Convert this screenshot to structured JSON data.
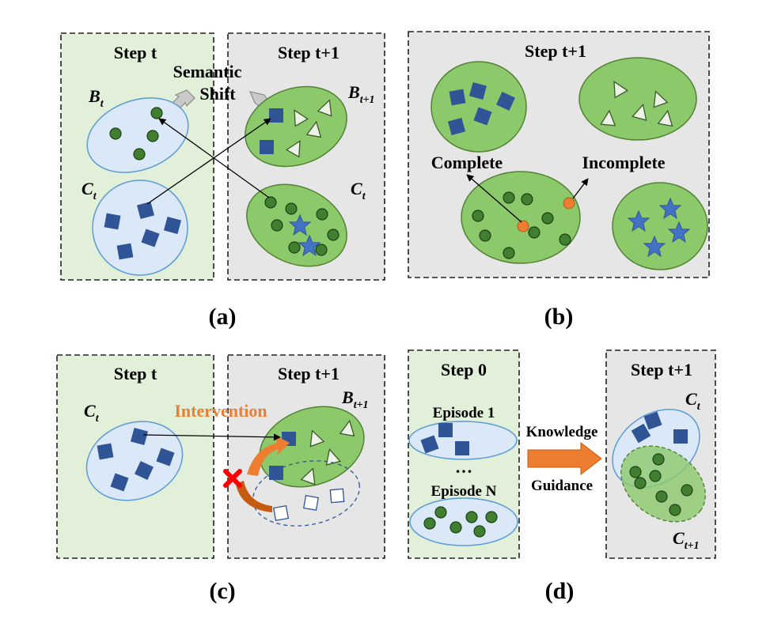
{
  "colors": {
    "green_panel": "#e2efd9",
    "gray_panel": "#e7e6e6",
    "blue_ellipse": "#dae8f8",
    "blue_stroke": "#5b9bd5",
    "green_ellipse": "#8cc96b",
    "green_stroke": "#548235",
    "square": "#2f5597",
    "dot_fill": "#3f7f2f",
    "star": "#4472c4",
    "orange": "#ed7d31",
    "red_cross": "#ff0000",
    "triangle": "#ecf3e6"
  },
  "panel_a": {
    "step_t": "Step t",
    "step_t1": "Step t+1",
    "semantic": "Semantic",
    "shift": "Shift",
    "label_b": "B",
    "label_b_sub": "t",
    "label_c": "C",
    "label_c_sub": "t",
    "label_b1": "B",
    "label_b1_sub": "t+1",
    "label_c_right": "C",
    "label_c_right_sub": "t",
    "caption": "(a)"
  },
  "panel_b": {
    "step": "Step t+1",
    "complete": "Complete",
    "incomplete": "Incomplete",
    "caption": "(b)"
  },
  "panel_c": {
    "step_t": "Step t",
    "step_t1": "Step t+1",
    "label_c": "C",
    "label_c_sub": "t",
    "label_b": "B",
    "label_b_sub": "t+1",
    "intervention": "Intervention",
    "caption": "(c)"
  },
  "panel_d": {
    "step0": "Step 0",
    "episode1": "Episode 1",
    "dots": "…",
    "episodeN": "Episode N",
    "knowledge": "Knowledge",
    "guidance": "Guidance",
    "step_t1": "Step t+1",
    "label_c": "C",
    "label_c_sub": "t",
    "label_c1": "C",
    "label_c1_sub": "t+1",
    "caption": "(d)"
  }
}
